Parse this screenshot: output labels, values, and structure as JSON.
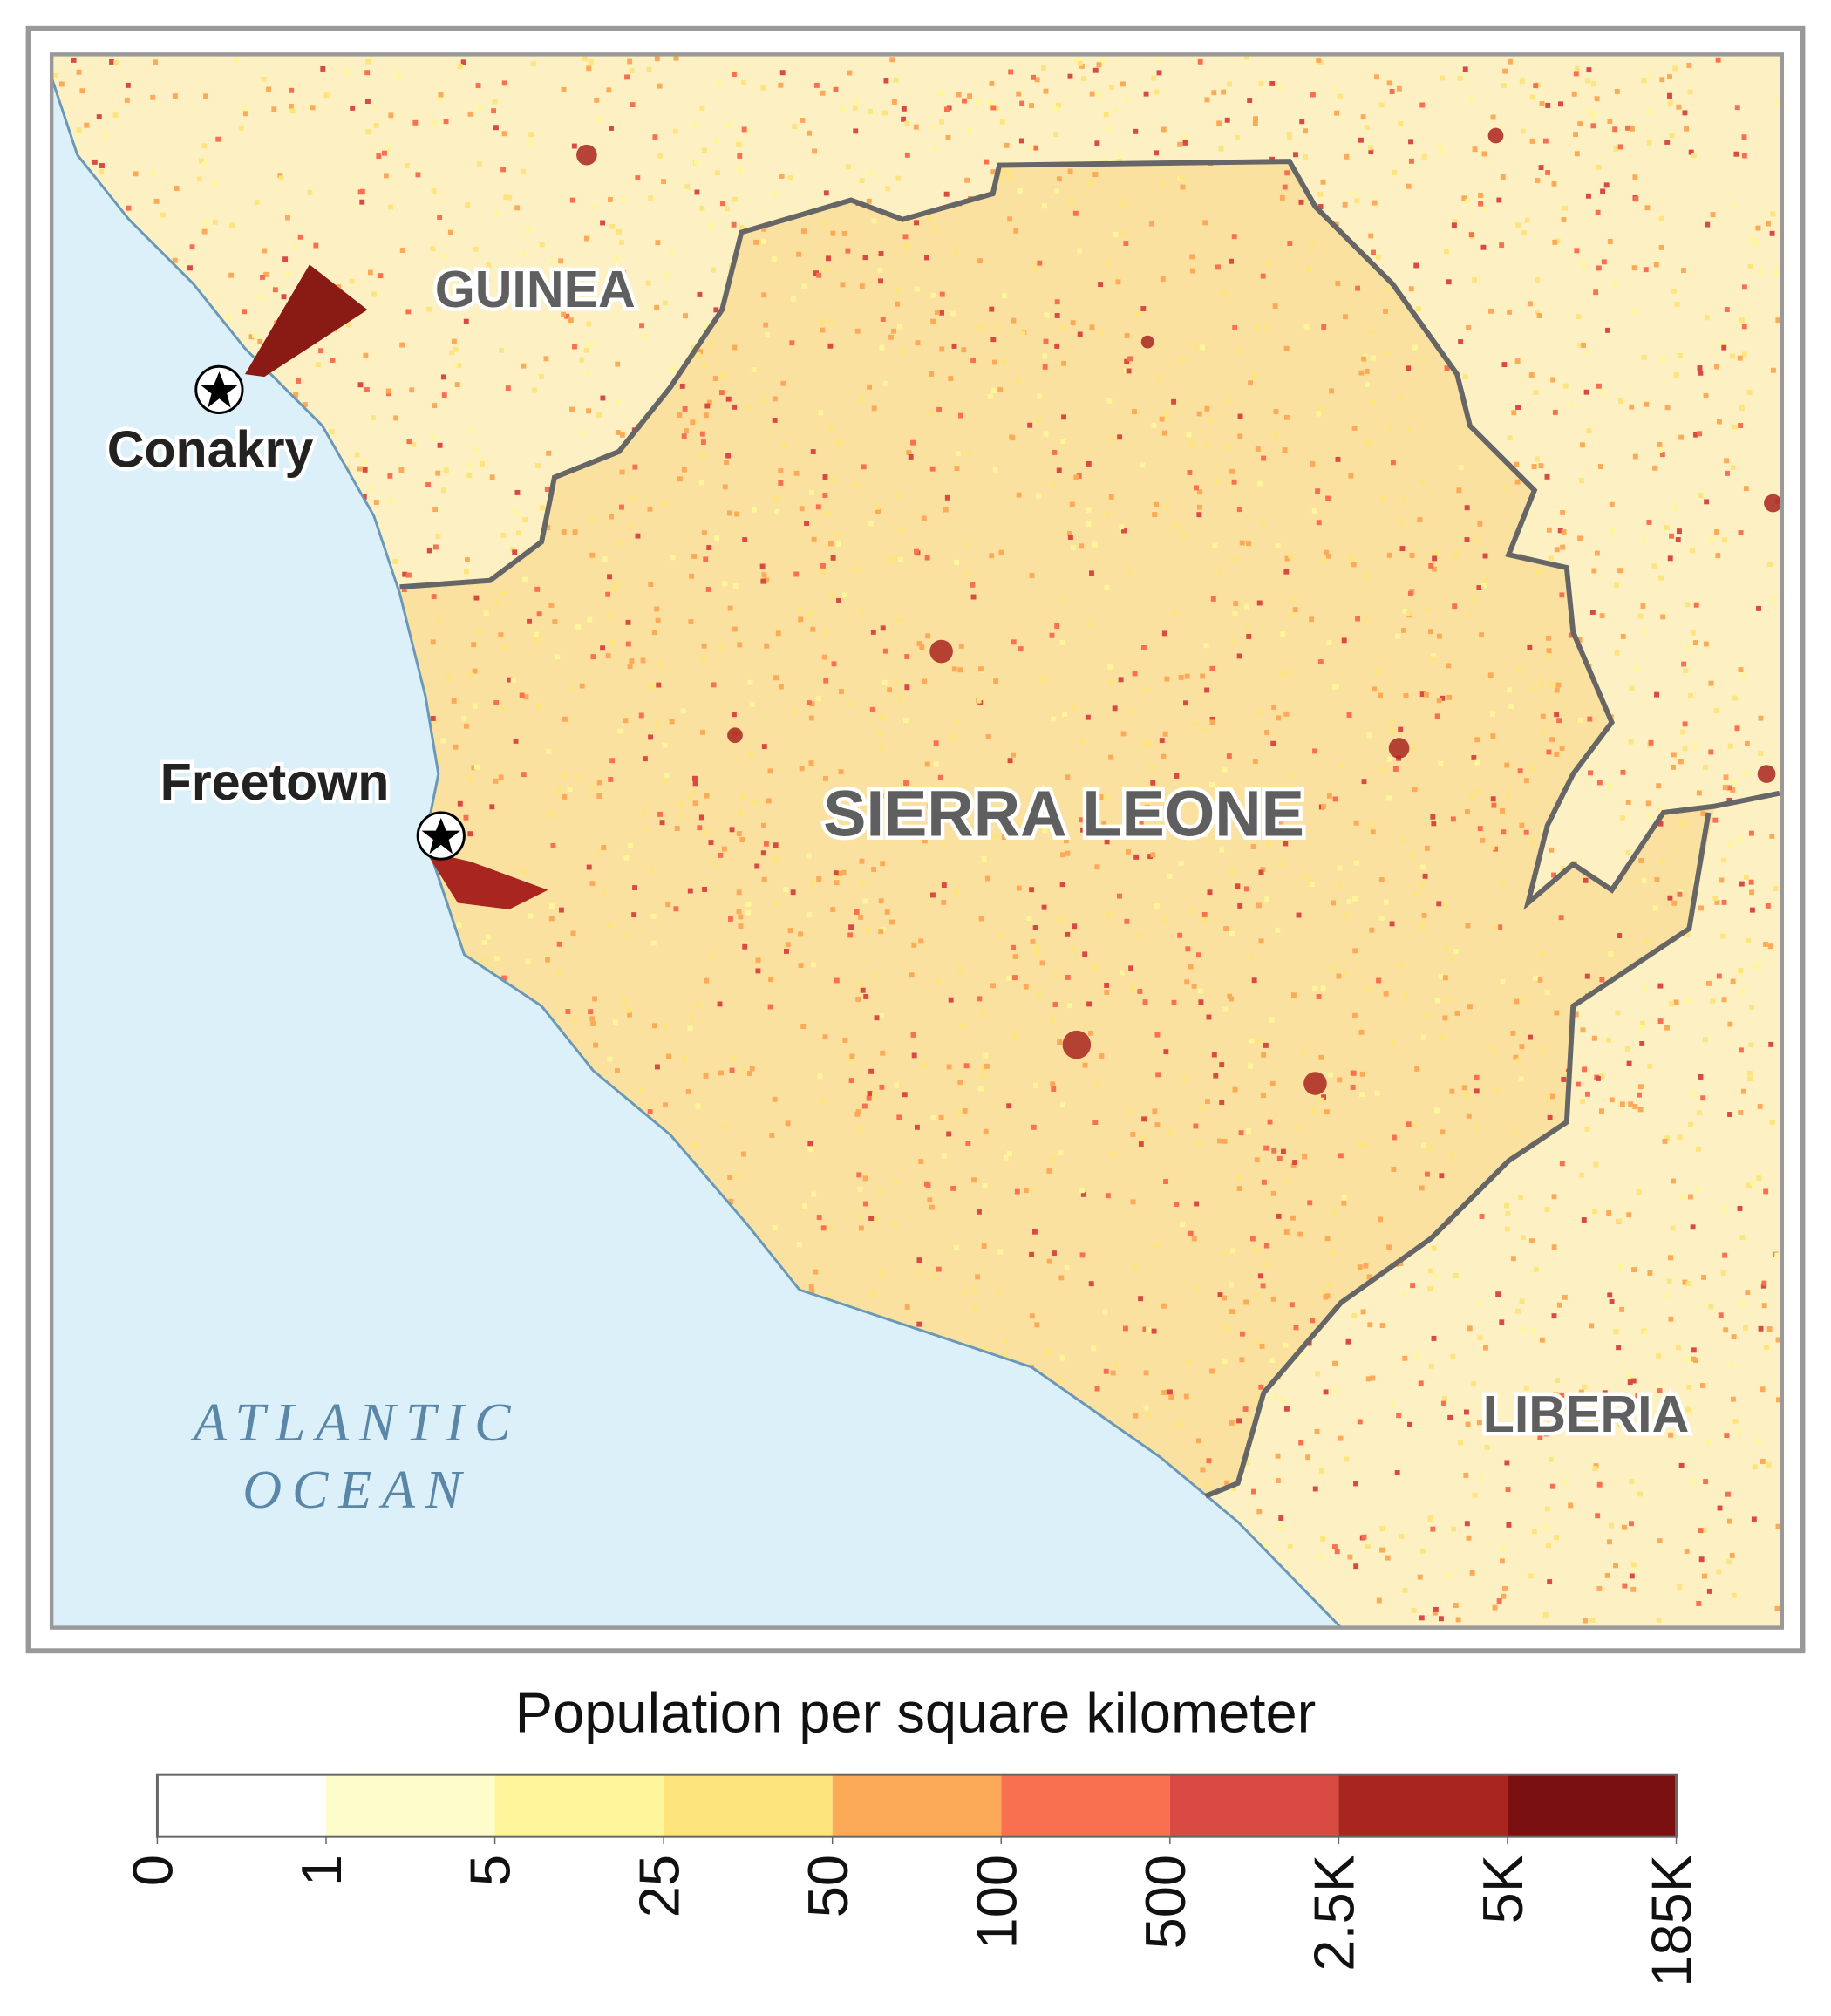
{
  "map": {
    "labels": {
      "guinea": "GUINEA",
      "sierra_leone": "SIERRA LEONE",
      "liberia": "LIBERIA",
      "ocean": [
        "ATLANTIC",
        "OCEAN"
      ]
    },
    "cities": [
      {
        "name": "Conakry"
      },
      {
        "name": "Freetown"
      }
    ]
  },
  "legend": {
    "title": "Population per square kilometer",
    "colors": [
      "#ffffff",
      "#fffccc",
      "#fff59a",
      "#fde47c",
      "#fcaa58",
      "#f87050",
      "#d84a42",
      "#a82520",
      "#7a1010"
    ],
    "ticks": [
      0,
      1,
      5,
      25,
      50,
      100,
      500,
      {
        "value": 2500,
        "label": "2.5K"
      },
      {
        "value": 5000,
        "label": "5K"
      },
      {
        "value": 185000,
        "label": "185K"
      }
    ]
  }
}
